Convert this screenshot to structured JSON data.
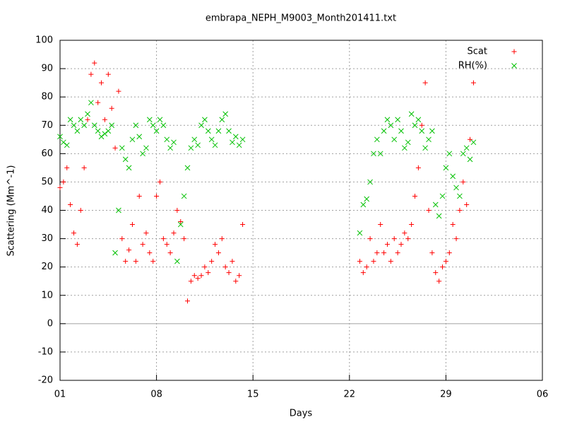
{
  "chart_data": {
    "type": "scatter",
    "title": "embrapa_NEPH_M9003_Month201411.txt",
    "xlabel": "Days",
    "ylabel": "Scattering (Mm^-1)",
    "xlim": [
      0,
      35
    ],
    "xticks": [
      {
        "value": 0,
        "label": "01"
      },
      {
        "value": 7,
        "label": "08"
      },
      {
        "value": 14,
        "label": "15"
      },
      {
        "value": 21,
        "label": "22"
      },
      {
        "value": 28,
        "label": "29"
      },
      {
        "value": 35,
        "label": "06"
      }
    ],
    "ylim": [
      -20,
      100
    ],
    "yticks": [
      -20,
      -10,
      0,
      10,
      20,
      30,
      40,
      50,
      60,
      70,
      80,
      90,
      100
    ],
    "grid": true,
    "legend": "top-right",
    "x": [
      0,
      0.25,
      0.5,
      0.75,
      1,
      1.25,
      1.5,
      1.75,
      2,
      2.25,
      2.5,
      2.75,
      3,
      3.25,
      3.5,
      3.75,
      4,
      4.25,
      4.5,
      4.75,
      5,
      5.25,
      5.5,
      5.75,
      6,
      6.25,
      6.5,
      6.75,
      7,
      7.25,
      7.5,
      7.75,
      8,
      8.25,
      8.5,
      8.75,
      9,
      9.25,
      9.5,
      9.75,
      10,
      10.25,
      10.5,
      10.75,
      11,
      11.25,
      11.5,
      11.75,
      12,
      12.25,
      12.5,
      12.75,
      13,
      13.25,
      21.75,
      22,
      22.25,
      22.5,
      22.75,
      23,
      23.25,
      23.5,
      23.75,
      24,
      24.25,
      24.5,
      24.75,
      25,
      25.25,
      25.5,
      25.75,
      26,
      26.25,
      26.5,
      26.75,
      27,
      27.25,
      27.5,
      27.75,
      28,
      28.25,
      28.5,
      28.75,
      29,
      29.25,
      29.5,
      29.75,
      30
    ],
    "series": [
      {
        "name": "Scat",
        "color": "#ff0000",
        "marker": "plus",
        "values": [
          48,
          50,
          55,
          42,
          32,
          28,
          40,
          55,
          72,
          88,
          92,
          78,
          85,
          72,
          88,
          76,
          62,
          82,
          30,
          22,
          26,
          35,
          22,
          45,
          28,
          32,
          25,
          22,
          45,
          50,
          30,
          28,
          25,
          32,
          40,
          36,
          30,
          8,
          15,
          17,
          16,
          17,
          20,
          18,
          22,
          28,
          25,
          30,
          20,
          18,
          22,
          15,
          17,
          35,
          22,
          18,
          20,
          30,
          22,
          25,
          35,
          25,
          28,
          22,
          30,
          25,
          28,
          32,
          30,
          35,
          45,
          55,
          70,
          85,
          40,
          25,
          18,
          15,
          20,
          22,
          25,
          35,
          30,
          40,
          50,
          42,
          65,
          85
        ]
      },
      {
        "name": "RH(%)",
        "color": "#00c000",
        "marker": "cross",
        "values": [
          66,
          64,
          63,
          72,
          70,
          68,
          72,
          70,
          74,
          78,
          70,
          68,
          66,
          67,
          68,
          70,
          25,
          40,
          62,
          58,
          55,
          65,
          70,
          66,
          60,
          62,
          72,
          70,
          68,
          72,
          70,
          65,
          62,
          64,
          22,
          35,
          45,
          55,
          62,
          65,
          63,
          70,
          72,
          68,
          65,
          63,
          68,
          72,
          74,
          68,
          64,
          66,
          63,
          65,
          32,
          42,
          44,
          50,
          60,
          65,
          60,
          68,
          72,
          70,
          65,
          72,
          68,
          62,
          64,
          74,
          70,
          72,
          68,
          62,
          65,
          68,
          42,
          38,
          45,
          55,
          60,
          52,
          48,
          45,
          60,
          62,
          58,
          64
        ]
      }
    ]
  }
}
